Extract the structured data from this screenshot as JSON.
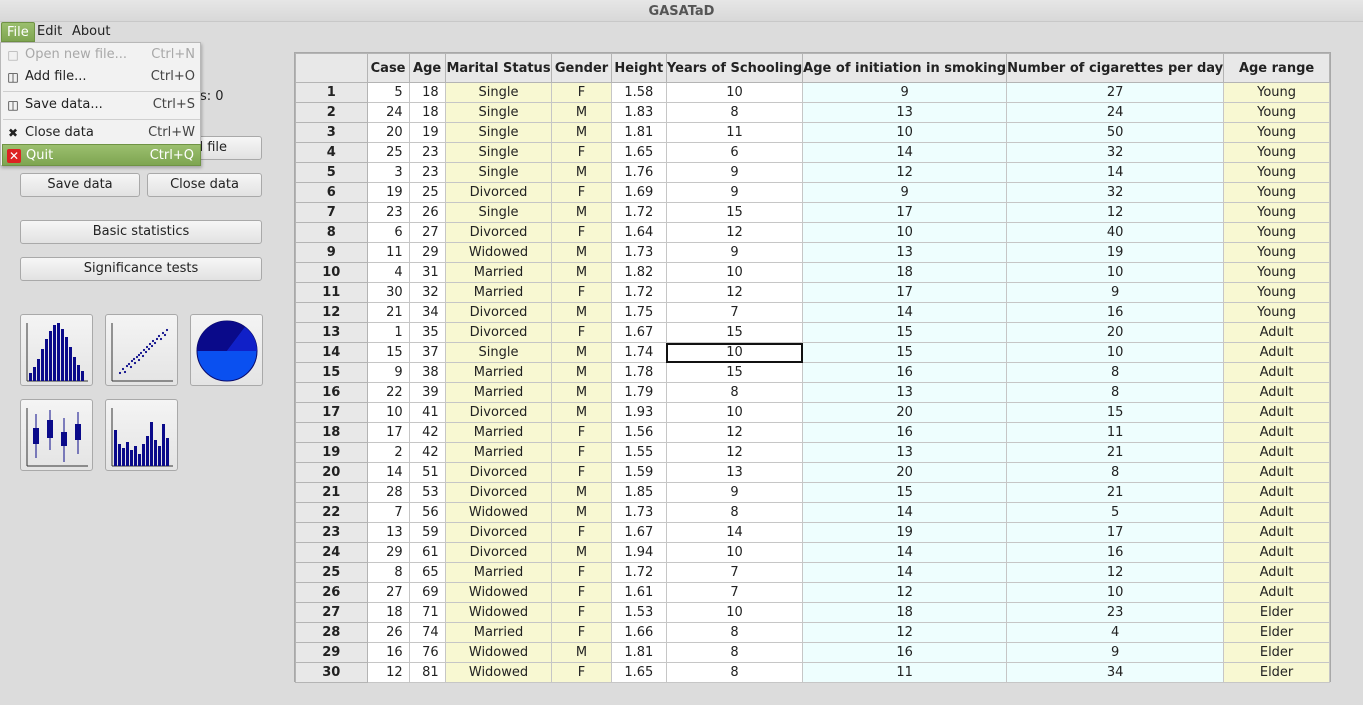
{
  "window": {
    "title": "GASATaD"
  },
  "menubar": {
    "file": "File",
    "edit": "Edit",
    "about": "About"
  },
  "file_menu": {
    "open": {
      "label": "Open new file...",
      "shortcut": "Ctrl+N"
    },
    "add": {
      "label": "Add file...",
      "shortcut": "Ctrl+O"
    },
    "save": {
      "label": "Save data...",
      "shortcut": "Ctrl+S"
    },
    "close": {
      "label": "Close data",
      "shortcut": "Ctrl+W"
    },
    "quit": {
      "label": "Quit",
      "shortcut": "Ctrl+Q"
    }
  },
  "left_panel": {
    "cases_text": "s: 0",
    "add_file_partial": "d file",
    "save_data": "Save data",
    "close_data": "Close data",
    "basic_statistics": "Basic statistics",
    "significance_tests": "Significance tests",
    "chart_icons": [
      "histogram-icon",
      "scatter-plot-icon",
      "pie-chart-icon",
      "box-plot-icon",
      "bar-chart-icon"
    ]
  },
  "colors": {
    "accent": "#8db35f",
    "yellow_cell": "#f8f8d2",
    "cyan_cell": "#eefefe",
    "icon_blue": "#0a0a8a"
  },
  "table": {
    "columns": [
      "Case",
      "Age",
      "Marital Status",
      "Gender",
      "Height",
      "Years of Schooling",
      "Age of initiation in smoking",
      "Number of cigarettes per day",
      "Age range"
    ],
    "rows": [
      [
        "1",
        "5",
        "18",
        "Single",
        "F",
        "1.58",
        "10",
        "9",
        "27",
        "Young"
      ],
      [
        "2",
        "24",
        "18",
        "Single",
        "M",
        "1.83",
        "8",
        "13",
        "24",
        "Young"
      ],
      [
        "3",
        "20",
        "19",
        "Single",
        "M",
        "1.81",
        "11",
        "10",
        "50",
        "Young"
      ],
      [
        "4",
        "25",
        "23",
        "Single",
        "F",
        "1.65",
        "6",
        "14",
        "32",
        "Young"
      ],
      [
        "5",
        "3",
        "23",
        "Single",
        "M",
        "1.76",
        "9",
        "12",
        "14",
        "Young"
      ],
      [
        "6",
        "19",
        "25",
        "Divorced",
        "F",
        "1.69",
        "9",
        "9",
        "32",
        "Young"
      ],
      [
        "7",
        "23",
        "26",
        "Single",
        "M",
        "1.72",
        "15",
        "17",
        "12",
        "Young"
      ],
      [
        "8",
        "6",
        "27",
        "Divorced",
        "F",
        "1.64",
        "12",
        "10",
        "40",
        "Young"
      ],
      [
        "9",
        "11",
        "29",
        "Widowed",
        "M",
        "1.73",
        "9",
        "13",
        "19",
        "Young"
      ],
      [
        "10",
        "4",
        "31",
        "Married",
        "M",
        "1.82",
        "10",
        "18",
        "10",
        "Young"
      ],
      [
        "11",
        "30",
        "32",
        "Married",
        "F",
        "1.72",
        "12",
        "17",
        "9",
        "Young"
      ],
      [
        "12",
        "21",
        "34",
        "Divorced",
        "M",
        "1.75",
        "7",
        "14",
        "16",
        "Young"
      ],
      [
        "13",
        "1",
        "35",
        "Divorced",
        "F",
        "1.67",
        "15",
        "15",
        "20",
        "Adult"
      ],
      [
        "14",
        "15",
        "37",
        "Single",
        "M",
        "1.74",
        "10",
        "15",
        "10",
        "Adult"
      ],
      [
        "15",
        "9",
        "38",
        "Married",
        "M",
        "1.78",
        "15",
        "16",
        "8",
        "Adult"
      ],
      [
        "16",
        "22",
        "39",
        "Married",
        "M",
        "1.79",
        "8",
        "13",
        "8",
        "Adult"
      ],
      [
        "17",
        "10",
        "41",
        "Divorced",
        "M",
        "1.93",
        "10",
        "20",
        "15",
        "Adult"
      ],
      [
        "18",
        "17",
        "42",
        "Married",
        "F",
        "1.56",
        "12",
        "16",
        "11",
        "Adult"
      ],
      [
        "19",
        "2",
        "42",
        "Married",
        "F",
        "1.55",
        "12",
        "13",
        "21",
        "Adult"
      ],
      [
        "20",
        "14",
        "51",
        "Divorced",
        "F",
        "1.59",
        "13",
        "20",
        "8",
        "Adult"
      ],
      [
        "21",
        "28",
        "53",
        "Divorced",
        "M",
        "1.85",
        "9",
        "15",
        "21",
        "Adult"
      ],
      [
        "22",
        "7",
        "56",
        "Widowed",
        "M",
        "1.73",
        "8",
        "14",
        "5",
        "Adult"
      ],
      [
        "23",
        "13",
        "59",
        "Divorced",
        "F",
        "1.67",
        "14",
        "19",
        "17",
        "Adult"
      ],
      [
        "24",
        "29",
        "61",
        "Divorced",
        "M",
        "1.94",
        "10",
        "14",
        "16",
        "Adult"
      ],
      [
        "25",
        "8",
        "65",
        "Married",
        "F",
        "1.72",
        "7",
        "14",
        "12",
        "Adult"
      ],
      [
        "26",
        "27",
        "69",
        "Widowed",
        "F",
        "1.61",
        "7",
        "12",
        "10",
        "Adult"
      ],
      [
        "27",
        "18",
        "71",
        "Widowed",
        "F",
        "1.53",
        "10",
        "18",
        "23",
        "Elder"
      ],
      [
        "28",
        "26",
        "74",
        "Married",
        "F",
        "1.66",
        "8",
        "12",
        "4",
        "Elder"
      ],
      [
        "29",
        "16",
        "76",
        "Widowed",
        "M",
        "1.81",
        "8",
        "16",
        "9",
        "Elder"
      ],
      [
        "30",
        "12",
        "81",
        "Widowed",
        "F",
        "1.65",
        "8",
        "11",
        "34",
        "Elder"
      ]
    ]
  }
}
